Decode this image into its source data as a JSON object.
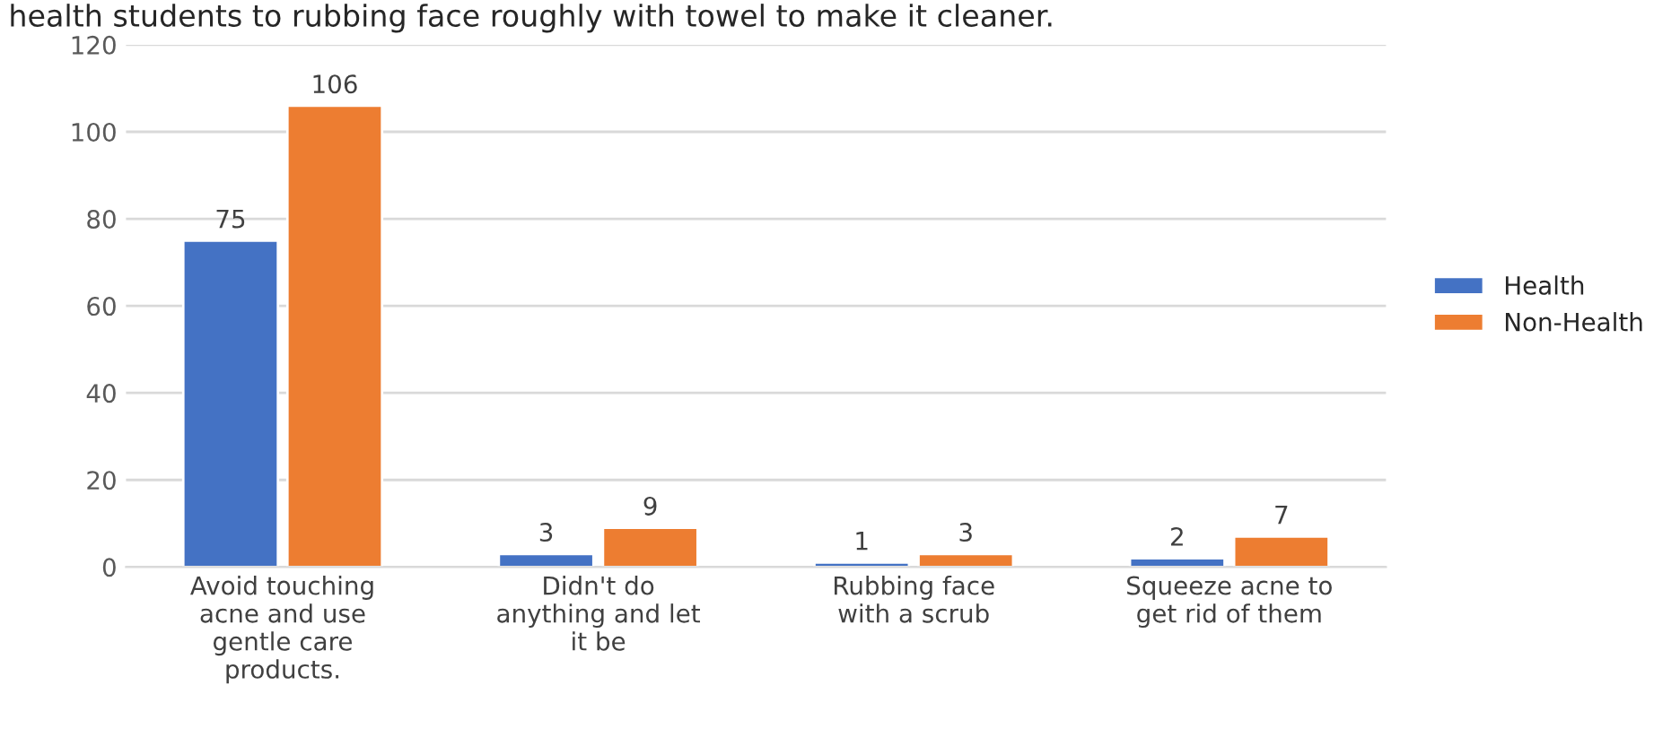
{
  "chart_data": {
    "type": "bar",
    "annotations": [
      "health students to rubbing face roughly with towel to make it cleaner."
    ],
    "categories": [
      "Avoid touching acne and use gentle care products.",
      "Didn't do anything and let it be",
      "Rubbing face with a scrub",
      "Squeeze acne to get rid of them"
    ],
    "series": [
      {
        "name": "Health",
        "color": "#4472c4",
        "values": [
          75,
          3,
          1,
          2
        ]
      },
      {
        "name": "Non-Health",
        "color": "#ed7d31",
        "values": [
          106,
          9,
          3,
          7
        ]
      }
    ],
    "ylim": [
      0,
      120
    ],
    "yticks": [
      0,
      20,
      40,
      60,
      80,
      100,
      120
    ],
    "grid": "y",
    "legend": "right",
    "data_labels": true
  }
}
